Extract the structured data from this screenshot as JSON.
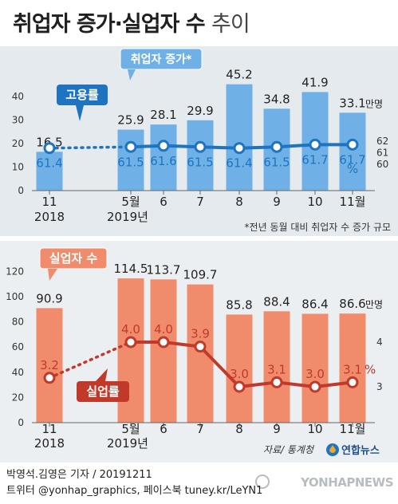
{
  "title": {
    "main": "취업자 증가·실업자 수",
    "suffix": "추이"
  },
  "colors": {
    "blue_bar": "#6fb1e6",
    "blue_line": "#1e74c0",
    "blue_text": "#1e74c0",
    "orange_bar": "#f08c6c",
    "red_line": "#c0392b",
    "red_text": "#c0392b",
    "panel1_bg": "#e5eaef",
    "panel2_bg": "#eceff2"
  },
  "chart_data": [
    {
      "type": "bar",
      "categories": [
        [
          "11",
          "2018"
        ],
        [
          "5월",
          "2019년"
        ],
        [
          "6"
        ],
        [
          "7"
        ],
        [
          "8"
        ],
        [
          "9"
        ],
        [
          "10"
        ],
        [
          "11월"
        ]
      ],
      "values": [
        16.5,
        25.9,
        28.1,
        29.9,
        45.2,
        34.8,
        41.9,
        33.1
      ],
      "value_labels": [
        "16.5",
        "25.9",
        "28.1",
        "29.9",
        "45.2",
        "34.8",
        "41.9",
        "33.1"
      ],
      "unit": "만명",
      "ylim": [
        0,
        50
      ],
      "yticks": [
        "0",
        "10",
        "20",
        "30",
        "40"
      ],
      "series_label": "취업자 증가*",
      "note": "*전년 동월 대비 취업자 수 증가 규모",
      "line": {
        "name": "고용률",
        "values": [
          61.4,
          61.5,
          61.6,
          61.5,
          61.4,
          61.5,
          61.7,
          61.7
        ],
        "value_labels": [
          "61.4",
          "61.5",
          "61.6",
          "61.5",
          "61.4",
          "61.5",
          "61.7",
          "61.7"
        ],
        "unit": "%",
        "ylim_right": [
          59,
          63
        ],
        "yticks_right": [
          "60",
          "61",
          "62"
        ]
      }
    },
    {
      "type": "bar",
      "categories": [
        [
          "11",
          "2018"
        ],
        [
          "5월",
          "2019년"
        ],
        [
          "6"
        ],
        [
          "7"
        ],
        [
          "8"
        ],
        [
          "9"
        ],
        [
          "10"
        ],
        [
          "11월"
        ]
      ],
      "values": [
        90.9,
        114.5,
        113.7,
        109.7,
        85.8,
        88.4,
        86.4,
        86.6
      ],
      "value_labels": [
        "90.9",
        "114.5",
        "113.7",
        "109.7",
        "85.8",
        "88.4",
        "86.4",
        "86.6"
      ],
      "unit": "만명",
      "ylim": [
        0,
        125
      ],
      "yticks": [
        "0",
        "20",
        "40",
        "60",
        "80",
        "100",
        "120"
      ],
      "series_label": "실업자 수",
      "source": "자료/ 통계청",
      "line": {
        "name": "실업률",
        "values": [
          3.2,
          4.0,
          4.0,
          3.9,
          3.0,
          3.1,
          3.0,
          3.1
        ],
        "value_labels": [
          "3.2",
          "4.0",
          "4.0",
          "3.9",
          "3.0",
          "3.1",
          "3.0",
          "3.1"
        ],
        "unit": "%",
        "ylim_right": [
          2.4,
          4.85
        ],
        "yticks_right": [
          "3",
          "4"
        ]
      }
    }
  ],
  "credits": {
    "line1": "박영석.김영은 기자 / 20191211",
    "line2": "트위터 @yonhap_graphics, 페이스북 tuney.kr/LeYN1",
    "logo": "연합뉴스",
    "watermark": "YONHAPNEWS"
  }
}
